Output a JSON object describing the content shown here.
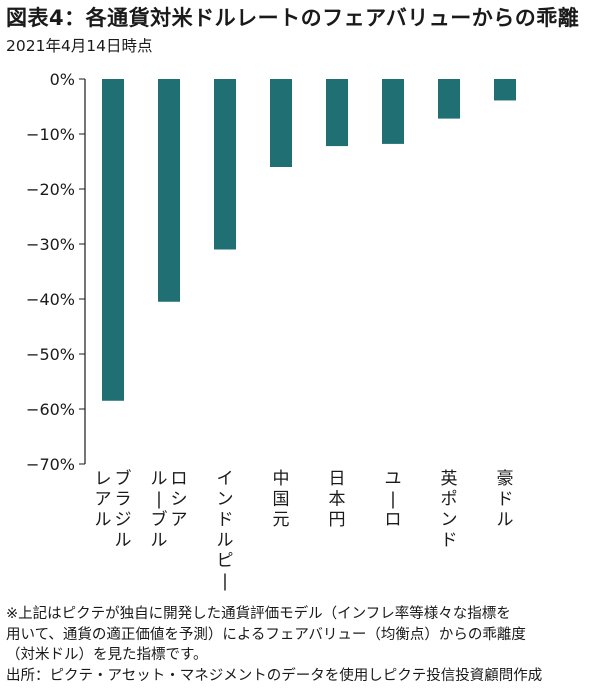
{
  "title": "図表4：各通貨対米ドルレートのフェアバリューからの乖離",
  "subtitle": "2021年4月14日時点",
  "chart_data": {
    "type": "bar",
    "categories": [
      "ブラジルレアル",
      "ロシアルーブル",
      "インドルピー",
      "中国元",
      "日本円",
      "ユーロ",
      "英ポンド",
      "豪ドル"
    ],
    "category_lines": [
      [
        "ブラジル",
        "レアル"
      ],
      [
        "ロシア",
        "ルーブル"
      ],
      [
        "インドルピー"
      ],
      [
        "中国元"
      ],
      [
        "日本円"
      ],
      [
        "ユーロ"
      ],
      [
        "英ポンド"
      ],
      [
        "豪ドル"
      ]
    ],
    "values": [
      -58.5,
      -40.5,
      -31,
      -16,
      -12.2,
      -11.8,
      -7.2,
      -3.9
    ],
    "ylim": [
      -70,
      0
    ],
    "yticks": [
      0,
      -10,
      -20,
      -30,
      -40,
      -50,
      -60,
      -70
    ],
    "ytick_labels": [
      "0%",
      "−10%",
      "−20%",
      "−30%",
      "−40%",
      "−50%",
      "−60%",
      "−70%"
    ],
    "bar_color": "#1f6f73",
    "grid": false,
    "legend": "none"
  },
  "notes": [
    "※上記はピクテが独自に開発した通貨評価モデル（インフレ率等様々な指標を",
    "用いて、通貨の適正価値を予測）によるフェアバリュー（均衡点）からの乖離度",
    "（対米ドル）を見た指標です。",
    "出所：ピクテ・アセット・マネジメントのデータを使用しピクテ投信投資顧問作成"
  ]
}
